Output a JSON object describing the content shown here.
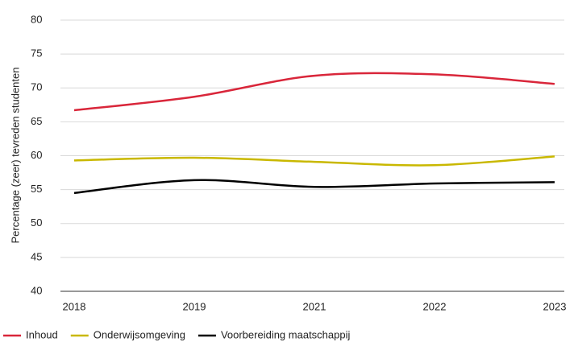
{
  "chart_data": {
    "type": "line",
    "y_label": "Percentage (zeer) tevreden studenten",
    "categories": [
      "2018",
      "2019",
      "2021",
      "2022",
      "2023"
    ],
    "series": [
      {
        "name": "Inhoud",
        "color": "#d9263a",
        "values": [
          66.7,
          68.7,
          71.8,
          72.0,
          70.6
        ]
      },
      {
        "name": "Onderwijsomgeving",
        "color": "#c9b800",
        "values": [
          59.3,
          59.7,
          59.1,
          58.6,
          59.9
        ]
      },
      {
        "name": "Voorbereiding maatschappij",
        "color": "#000000",
        "values": [
          54.5,
          56.4,
          55.4,
          55.9,
          56.1
        ]
      }
    ],
    "ylim": [
      40,
      80
    ],
    "yticks": [
      40,
      45,
      50,
      55,
      60,
      65,
      70,
      75,
      80
    ],
    "grid": true,
    "legend": "bottom"
  }
}
